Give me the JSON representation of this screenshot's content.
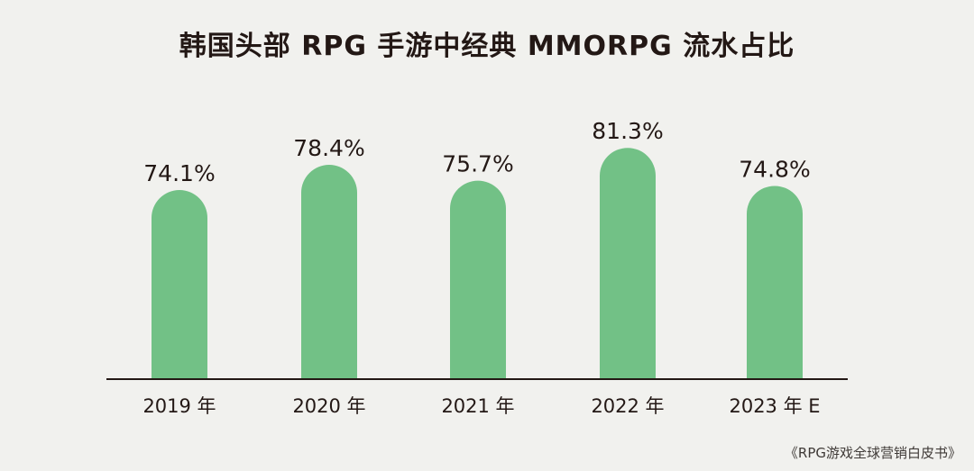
{
  "page": {
    "background": "#f1f1ee",
    "source_note": "《RPG游戏全球营销白皮书》"
  },
  "chart_data": {
    "type": "bar",
    "title": "韩国头部 RPG 手游中经典 MMORPG 流水占比",
    "xlabel": "",
    "ylabel": "",
    "categories": [
      "2019 年",
      "2020 年",
      "2021 年",
      "2022 年",
      "2023 年 E"
    ],
    "values": [
      74.1,
      78.4,
      75.7,
      81.3,
      74.8
    ],
    "data_labels": [
      "74.1%",
      "78.4%",
      "75.7%",
      "81.3%",
      "74.8%"
    ],
    "unit": "%",
    "bar_color": "#72c186",
    "axis_color": "#231815",
    "grid": false,
    "legend": "none"
  }
}
